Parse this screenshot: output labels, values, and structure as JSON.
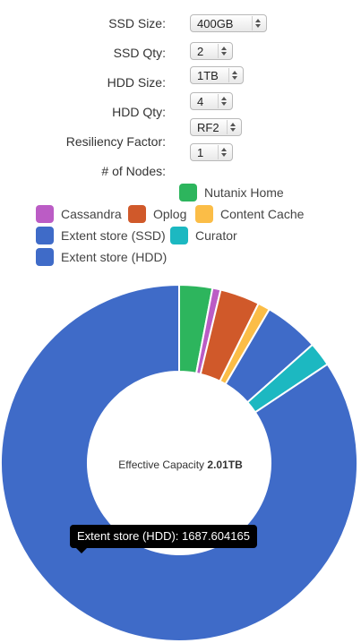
{
  "controls": {
    "ssd_size": {
      "label": "SSD Size:",
      "value": "400GB"
    },
    "ssd_qty": {
      "label": "SSD Qty:",
      "value": "2"
    },
    "hdd_size": {
      "label": "HDD Size:",
      "value": "1TB"
    },
    "hdd_qty": {
      "label": "HDD Qty:",
      "value": "4"
    },
    "resiliency": {
      "label": "Resiliency Factor:",
      "value": "RF2"
    },
    "nodes": {
      "label": "# of Nodes:",
      "value": "1"
    }
  },
  "center": {
    "label": "Effective Capacity",
    "value": "2.01TB"
  },
  "tooltip": {
    "text": "Extent store (HDD): 1687.604165"
  },
  "chart_data": {
    "type": "pie",
    "donut": true,
    "legend": [
      {
        "label": "Nutanix Home",
        "color": "#2db55d"
      },
      {
        "label": "Cassandra",
        "color": "#bb5cc5"
      },
      {
        "label": "Oplog",
        "color": "#d0592a"
      },
      {
        "label": "Content Cache",
        "color": "#fbbd47"
      },
      {
        "label": "Extent store (SSD)",
        "color": "#3f6bc8"
      },
      {
        "label": "Curator",
        "color": "#1cb8c1"
      },
      {
        "label": "Extent store (HDD)",
        "color": "#3f6bc8"
      }
    ],
    "slices": [
      {
        "label": "Nutanix Home",
        "value": 60,
        "color": "#2db55d"
      },
      {
        "label": "Cassandra",
        "value": 15,
        "color": "#bb5cc5"
      },
      {
        "label": "Oplog",
        "value": 72,
        "color": "#d0592a"
      },
      {
        "label": "Content Cache",
        "value": 22,
        "color": "#fbbd47"
      },
      {
        "label": "Extent store (SSD)",
        "value": 100,
        "color": "#3f6bc8"
      },
      {
        "label": "Curator",
        "value": 44,
        "color": "#1cb8c1"
      },
      {
        "label": "Extent store (HDD)",
        "value": 1687.604165,
        "color": "#3f6bc8"
      }
    ]
  }
}
